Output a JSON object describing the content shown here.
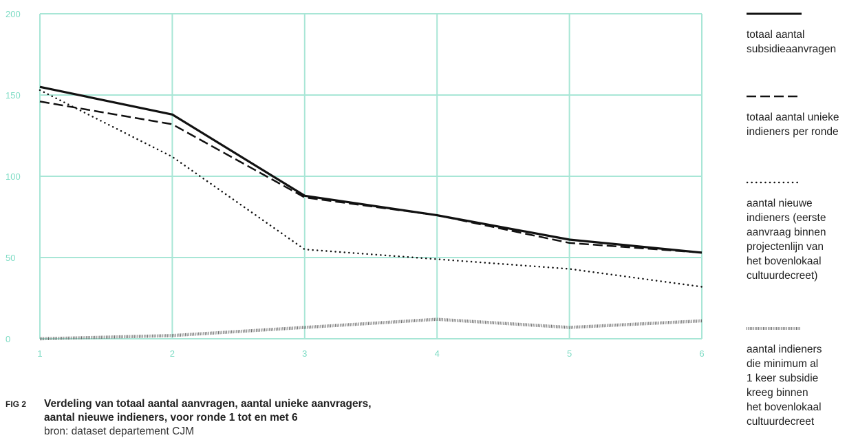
{
  "chart_data": {
    "type": "line",
    "x": [
      1,
      2,
      3,
      4,
      5,
      6
    ],
    "xticks": [
      "1",
      "2",
      "3",
      "4",
      "5",
      "6"
    ],
    "yticks": [
      "0",
      "50",
      "100",
      "150",
      "200"
    ],
    "ylim": [
      0,
      200
    ],
    "xlim": [
      1,
      6
    ],
    "grid": true,
    "legend_position": "right",
    "series": [
      {
        "name": "totaal aantal subsidieaanvragen",
        "style": "solid",
        "values": [
          155,
          138,
          88,
          76,
          61,
          53
        ]
      },
      {
        "name": "totaal aantal unieke indieners per ronde",
        "style": "dashed",
        "values": [
          146,
          132,
          87,
          76,
          59,
          53
        ]
      },
      {
        "name": "aantal nieuwe indieners (eerste aanvraag binnen projectenlijn van het bovenlokaal cultuurdecreet)",
        "style": "dotted",
        "values": [
          153,
          112,
          55,
          49,
          43,
          32
        ]
      },
      {
        "name": "aantal indieners die minimum al 1 keer subsidie kreeg binnen het bovenlokaal cultuurdecreet",
        "style": "hatched",
        "values": [
          0,
          2,
          7,
          12,
          7,
          11
        ]
      }
    ]
  },
  "legend": [
    {
      "label": "totaal aantal\nsubsidieaanvragen",
      "style": "solid"
    },
    {
      "label": "totaal aantal unieke\nindieners per ronde",
      "style": "dashed"
    },
    {
      "label": "aantal nieuwe\nindieners (eerste\naanvraag binnen\nprojectenlijn van\nhet bovenlokaal\ncultuurdecreet)",
      "style": "dotted"
    },
    {
      "label": "aantal indieners\ndie minimum al\n1 keer subsidie\nkreeg binnen\nhet bovenlokaal\ncultuurdecreet",
      "style": "hatched"
    }
  ],
  "caption": {
    "fig_number": "FIG 2",
    "title": "Verdeling van totaal aantal aanvragen, aantal unieke aanvragers,\naantal nieuwe indieners, voor ronde 1 tot en met 6",
    "source": "bron: dataset departement CJM"
  },
  "colors": {
    "grid": "#a8e6d6",
    "tick_text": "#7ddcc4",
    "line": "#111111"
  }
}
